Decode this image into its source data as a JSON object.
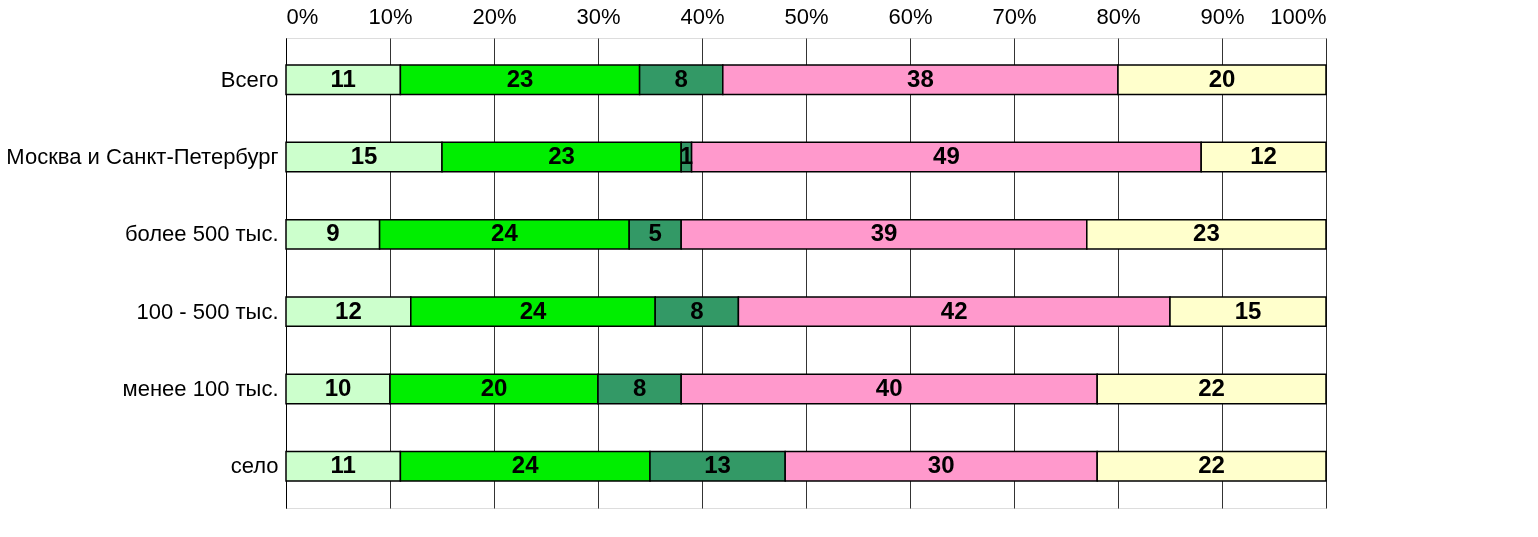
{
  "chart_data": {
    "type": "bar",
    "orientation": "horizontal",
    "stacked": true,
    "categories": [
      "Всего",
      "Москва и Санкт-Петербург",
      "более 500 тыс.",
      "100 - 500 тыс.",
      "менее 100 тыс.",
      "село"
    ],
    "series": [
      {
        "color": "#ccffcc",
        "values": [
          11,
          15,
          9,
          12,
          10,
          11
        ],
        "value_labels": [
          "11",
          "15",
          "9",
          "12",
          "10",
          "11"
        ]
      },
      {
        "color": "#00ee00",
        "values": [
          23,
          23,
          24,
          23.5,
          20,
          24
        ],
        "value_labels": [
          "23",
          "23",
          "24",
          "24",
          "20",
          "24"
        ]
      },
      {
        "color": "#339966",
        "values": [
          8,
          1,
          5,
          8,
          8,
          13
        ],
        "value_labels": [
          "8",
          "1",
          "5",
          "8",
          "8",
          "13"
        ]
      },
      {
        "color": "#ff99cc",
        "values": [
          38,
          49,
          39,
          41.5,
          40,
          30
        ],
        "value_labels": [
          "38",
          "49",
          "39",
          "42",
          "40",
          "30"
        ]
      },
      {
        "color": "#ffffcc",
        "values": [
          20,
          12,
          23,
          15,
          22,
          22
        ],
        "value_labels": [
          "20",
          "12",
          "23",
          "15",
          "22",
          "22"
        ]
      }
    ],
    "xlim": [
      0,
      100
    ],
    "xticks": [
      {
        "value": 0,
        "label": "0%"
      },
      {
        "value": 10,
        "label": "10%"
      },
      {
        "value": 20,
        "label": "20%"
      },
      {
        "value": 30,
        "label": "30%"
      },
      {
        "value": 40,
        "label": "40%"
      },
      {
        "value": 50,
        "label": "50%"
      },
      {
        "value": 60,
        "label": "60%"
      },
      {
        "value": 70,
        "label": "70%"
      },
      {
        "value": 80,
        "label": "80%"
      },
      {
        "value": 90,
        "label": "90%"
      },
      {
        "value": 100,
        "label": "100%"
      }
    ],
    "grid": "x",
    "legend": false
  }
}
